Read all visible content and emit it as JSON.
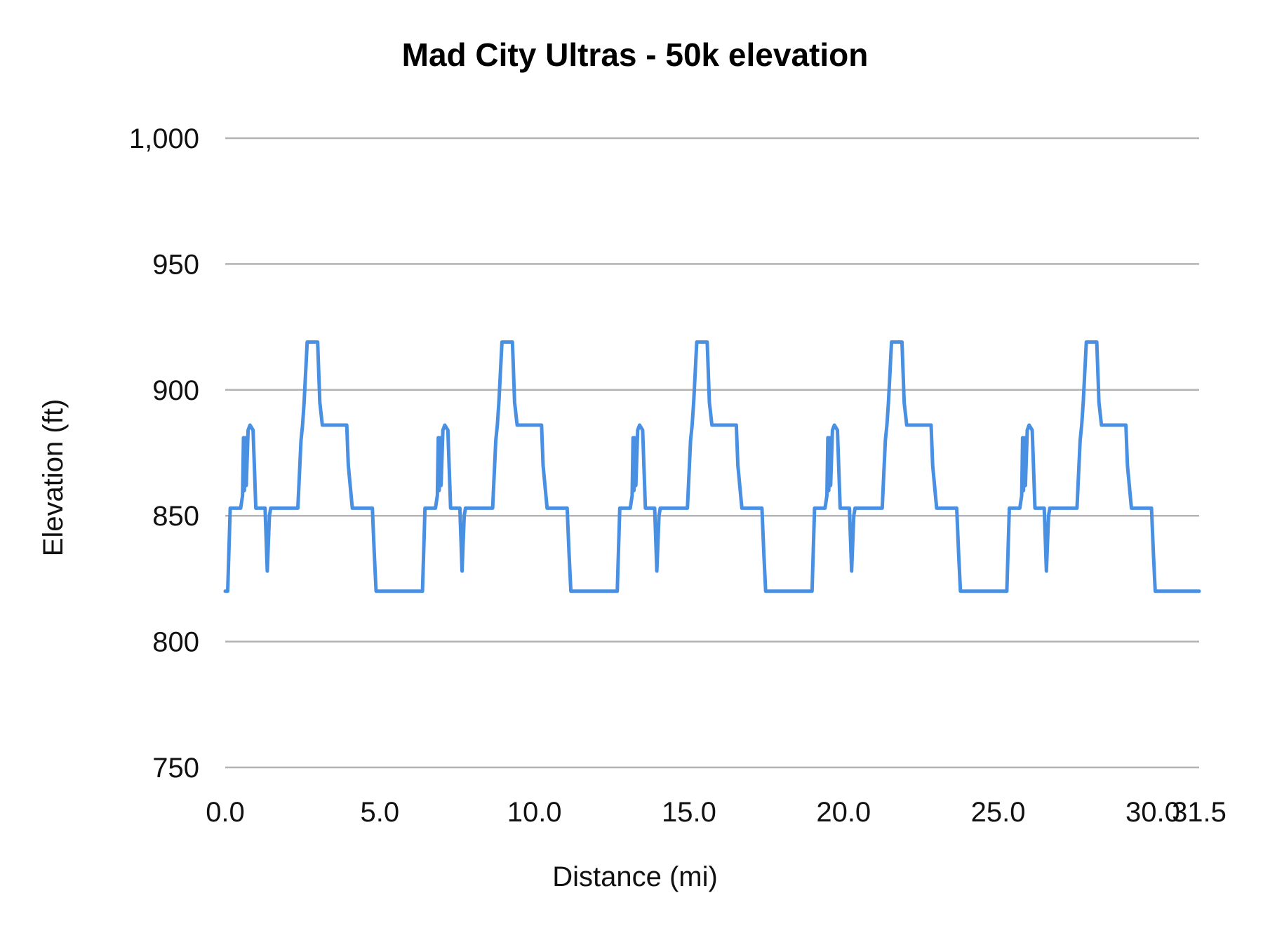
{
  "chart_data": {
    "type": "line",
    "title": "Mad City Ultras - 50k elevation",
    "xlabel": "Distance (mi)",
    "ylabel": "Elevation (ft)",
    "xlim": [
      0,
      31.5
    ],
    "ylim": [
      750,
      1000
    ],
    "x_ticks": [
      0,
      5,
      10,
      15,
      20,
      25,
      30,
      31.5
    ],
    "x_tick_labels": [
      "0.0",
      "5.0",
      "10.0",
      "15.0",
      "20.0",
      "25.0",
      "30.0",
      "31.5"
    ],
    "y_ticks": [
      750,
      800,
      850,
      900,
      950,
      1000
    ],
    "y_tick_labels": [
      "750",
      "800",
      "850",
      "900",
      "950",
      "1,000"
    ],
    "grid": "horizontal",
    "legend": "none",
    "line_color": "#4a90e2",
    "grid_color": "#b3b3b3",
    "series": [
      {
        "x": [
          0.0,
          0.08,
          0.16,
          0.5,
          0.56,
          0.59,
          0.62,
          0.65,
          0.68,
          0.74,
          0.8,
          0.9,
          0.99,
          1.29,
          1.36,
          1.43,
          1.47,
          2.35,
          2.45,
          2.5,
          2.55,
          2.65,
          2.99,
          3.06,
          3.14,
          3.93,
          3.98,
          4.11,
          4.76,
          4.82,
          4.88,
          6.38,
          6.46,
          6.8,
          6.86,
          6.89,
          6.92,
          6.95,
          6.98,
          7.04,
          7.1,
          7.2,
          7.29,
          7.59,
          7.66,
          7.73,
          7.77,
          8.65,
          8.75,
          8.8,
          8.85,
          8.95,
          9.29,
          9.36,
          9.44,
          10.23,
          10.28,
          10.41,
          11.06,
          11.12,
          11.18,
          12.68,
          12.76,
          13.1,
          13.16,
          13.19,
          13.22,
          13.25,
          13.28,
          13.34,
          13.4,
          13.5,
          13.59,
          13.89,
          13.96,
          14.03,
          14.07,
          14.95,
          15.05,
          15.1,
          15.15,
          15.25,
          15.59,
          15.66,
          15.74,
          16.53,
          16.58,
          16.71,
          17.36,
          17.42,
          17.48,
          18.98,
          19.06,
          19.4,
          19.46,
          19.49,
          19.52,
          19.55,
          19.58,
          19.64,
          19.7,
          19.8,
          19.89,
          20.19,
          20.26,
          20.33,
          20.37,
          21.25,
          21.35,
          21.4,
          21.45,
          21.55,
          21.89,
          21.96,
          22.04,
          22.83,
          22.88,
          23.01,
          23.66,
          23.72,
          23.78,
          25.28,
          25.36,
          25.7,
          25.76,
          25.79,
          25.82,
          25.85,
          25.88,
          25.94,
          26.0,
          26.1,
          26.19,
          26.49,
          26.56,
          26.63,
          26.67,
          27.55,
          27.65,
          27.7,
          27.75,
          27.85,
          28.19,
          28.26,
          28.34,
          29.13,
          29.18,
          29.31,
          29.96,
          30.02,
          30.08,
          31.5
        ],
        "y": [
          820,
          820,
          853,
          853,
          858,
          881,
          860,
          881,
          862,
          884,
          886,
          884,
          853,
          853,
          828,
          850,
          853,
          853,
          880,
          886,
          895,
          919,
          919,
          895,
          886,
          886,
          870,
          853,
          853,
          835,
          820,
          820,
          853,
          853,
          858,
          881,
          860,
          881,
          862,
          884,
          886,
          884,
          853,
          853,
          828,
          850,
          853,
          853,
          880,
          886,
          895,
          919,
          919,
          895,
          886,
          886,
          870,
          853,
          853,
          835,
          820,
          820,
          853,
          853,
          858,
          881,
          860,
          881,
          862,
          884,
          886,
          884,
          853,
          853,
          828,
          850,
          853,
          853,
          880,
          886,
          895,
          919,
          919,
          895,
          886,
          886,
          870,
          853,
          853,
          835,
          820,
          820,
          853,
          853,
          858,
          881,
          860,
          881,
          862,
          884,
          886,
          884,
          853,
          853,
          828,
          850,
          853,
          853,
          880,
          886,
          895,
          919,
          919,
          895,
          886,
          886,
          870,
          853,
          853,
          835,
          820,
          820,
          853,
          853,
          858,
          881,
          860,
          881,
          862,
          884,
          886,
          884,
          853,
          853,
          828,
          850,
          853,
          853,
          880,
          886,
          895,
          919,
          919,
          895,
          886,
          886,
          870,
          853,
          853,
          835,
          820,
          820
        ]
      }
    ]
  }
}
